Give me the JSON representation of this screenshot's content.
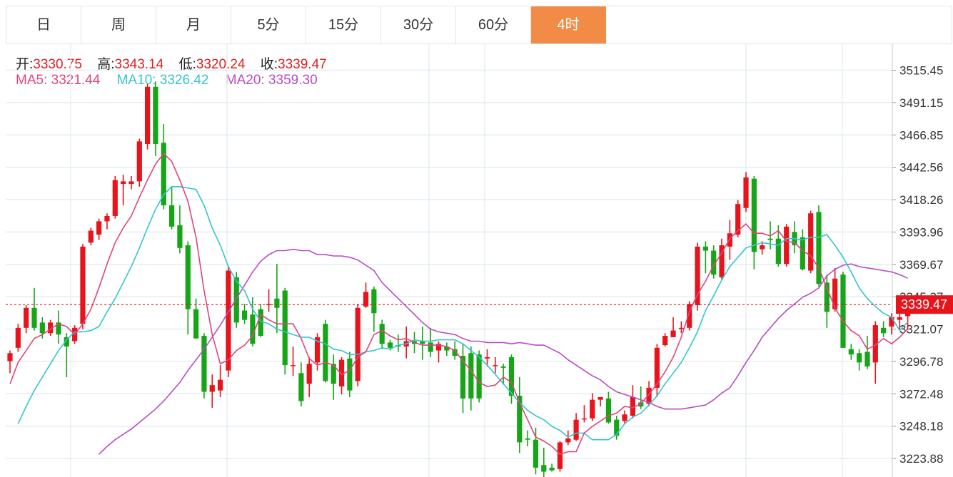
{
  "tabs": [
    {
      "label": "日",
      "active": false
    },
    {
      "label": "周",
      "active": false
    },
    {
      "label": "月",
      "active": false
    },
    {
      "label": "5分",
      "active": false
    },
    {
      "label": "15分",
      "active": false
    },
    {
      "label": "30分",
      "active": false
    },
    {
      "label": "60分",
      "active": false
    },
    {
      "label": "4时",
      "active": true
    }
  ],
  "ohlc": {
    "open_label": "开:",
    "open": "3330.75",
    "high_label": "高:",
    "high": "3343.14",
    "low_label": "低:",
    "low": "3320.24",
    "close_label": "收:",
    "close": "3339.47"
  },
  "ma": {
    "ma5_label": "MA5:",
    "ma5": "3321.44",
    "ma10_label": "MA10:",
    "ma10": "3326.42",
    "ma20_label": "MA20:",
    "ma20": "3359.30"
  },
  "colors": {
    "up": "#e8141c",
    "down": "#16a516",
    "ma5": "#e0457b",
    "ma10": "#33c5d0",
    "ma20": "#b84cc4",
    "accent": "#f28b45",
    "price_line": "#e8141c"
  },
  "chart_data": {
    "type": "candlestick",
    "y_ticks": [
      "3515.45",
      "3491.15",
      "3466.85",
      "3442.56",
      "3418.26",
      "3393.96",
      "3369.67",
      "3345.37",
      "3321.07",
      "3296.78",
      "3272.48",
      "3248.18",
      "3223.88"
    ],
    "ylim": [
      3210,
      3535
    ],
    "current_price": "3339.47",
    "grid": true,
    "candles": [
      [
        3297,
        3303,
        3288,
        3305
      ],
      [
        3307,
        3322,
        3304,
        3325
      ],
      [
        3322,
        3337,
        3318,
        3339
      ],
      [
        3337,
        3322,
        3320,
        3352
      ],
      [
        3326,
        3318,
        3314,
        3330
      ],
      [
        3318,
        3326,
        3316,
        3328
      ],
      [
        3326,
        3317,
        3310,
        3335
      ],
      [
        3315,
        3308,
        3285,
        3318
      ],
      [
        3312,
        3322,
        3310,
        3324
      ],
      [
        3325,
        3383,
        3321,
        3385
      ],
      [
        3386,
        3395,
        3384,
        3397
      ],
      [
        3392,
        3402,
        3388,
        3404
      ],
      [
        3402,
        3406,
        3396,
        3408
      ],
      [
        3406,
        3433,
        3404,
        3436
      ],
      [
        3430,
        3432,
        3414,
        3437
      ],
      [
        3430,
        3432,
        3426,
        3436
      ],
      [
        3432,
        3462,
        3428,
        3464
      ],
      [
        3460,
        3503,
        3456,
        3505
      ],
      [
        3503,
        3460,
        3451,
        3507
      ],
      [
        3461,
        3414,
        3411,
        3475
      ],
      [
        3414,
        3398,
        3396,
        3428
      ],
      [
        3399,
        3382,
        3378,
        3414
      ],
      [
        3384,
        3336,
        3317,
        3387
      ],
      [
        3336,
        3314,
        3316,
        3344
      ],
      [
        3316,
        3274,
        3269,
        3318
      ],
      [
        3274,
        3279,
        3262,
        3287
      ],
      [
        3275,
        3283,
        3270,
        3294
      ],
      [
        3290,
        3365,
        3285,
        3368
      ],
      [
        3360,
        3326,
        3322,
        3364
      ],
      [
        3335,
        3328,
        3325,
        3340
      ],
      [
        3332,
        3310,
        3308,
        3345
      ],
      [
        3336,
        3316,
        3315,
        3340
      ],
      [
        3340,
        3340,
        3334,
        3351
      ],
      [
        3344,
        3337,
        3318,
        3370
      ],
      [
        3350,
        3294,
        3287,
        3352
      ],
      [
        3294,
        3294,
        3286,
        3308
      ],
      [
        3288,
        3267,
        3263,
        3296
      ],
      [
        3280,
        3295,
        3270,
        3300
      ],
      [
        3296,
        3315,
        3290,
        3318
      ],
      [
        3325,
        3282,
        3281,
        3328
      ],
      [
        3295,
        3280,
        3268,
        3302
      ],
      [
        3278,
        3298,
        3272,
        3300
      ],
      [
        3299,
        3275,
        3270,
        3304
      ],
      [
        3282,
        3337,
        3278,
        3340
      ],
      [
        3338,
        3349,
        3337,
        3356
      ],
      [
        3351,
        3333,
        3319,
        3353
      ],
      [
        3325,
        3310,
        3306,
        3328
      ],
      [
        3311,
        3307,
        3305,
        3313
      ],
      [
        3309,
        3308,
        3304,
        3317
      ],
      [
        3308,
        3312,
        3299,
        3323
      ],
      [
        3312,
        3310,
        3303,
        3319
      ],
      [
        3312,
        3310,
        3298,
        3323
      ],
      [
        3311,
        3304,
        3300,
        3322
      ],
      [
        3305,
        3310,
        3296,
        3312
      ],
      [
        3308,
        3305,
        3301,
        3311
      ],
      [
        3306,
        3301,
        3298,
        3312
      ],
      [
        3301,
        3269,
        3258,
        3310
      ],
      [
        3303,
        3269,
        3260,
        3308
      ],
      [
        3302,
        3269,
        3266,
        3305
      ],
      [
        3299,
        3300,
        3293,
        3306
      ],
      [
        3294,
        3294,
        3288,
        3300
      ],
      [
        3293,
        3292,
        3280,
        3295
      ],
      [
        3300,
        3271,
        3265,
        3302
      ],
      [
        3271,
        3236,
        3228,
        3285
      ],
      [
        3239,
        3238,
        3233,
        3245
      ],
      [
        3238,
        3217,
        3212,
        3247
      ],
      [
        3219,
        3214,
        3207,
        3232
      ],
      [
        3217,
        3215,
        3214,
        3220
      ],
      [
        3216,
        3236,
        3214,
        3237
      ],
      [
        3236,
        3239,
        3234,
        3245
      ],
      [
        3238,
        3253,
        3237,
        3258
      ],
      [
        3254,
        3254,
        3251,
        3264
      ],
      [
        3254,
        3268,
        3252,
        3273
      ],
      [
        3268,
        3270,
        3263,
        3270
      ],
      [
        3269,
        3251,
        3250,
        3274
      ],
      [
        3253,
        3241,
        3238,
        3256
      ],
      [
        3252,
        3257,
        3250,
        3260
      ],
      [
        3256,
        3270,
        3254,
        3279
      ],
      [
        3266,
        3263,
        3261,
        3278
      ],
      [
        3265,
        3277,
        3263,
        3282
      ],
      [
        3277,
        3307,
        3270,
        3310
      ],
      [
        3309,
        3316,
        3308,
        3318
      ],
      [
        3315,
        3320,
        3315,
        3330
      ],
      [
        3322,
        3322,
        3318,
        3327
      ],
      [
        3322,
        3340,
        3320,
        3342
      ],
      [
        3339,
        3383,
        3335,
        3386
      ],
      [
        3383,
        3380,
        3363,
        3387
      ],
      [
        3380,
        3362,
        3359,
        3384
      ],
      [
        3360,
        3384,
        3358,
        3389
      ],
      [
        3383,
        3393,
        3373,
        3403
      ],
      [
        3392,
        3415,
        3390,
        3418
      ],
      [
        3412,
        3435,
        3409,
        3439
      ],
      [
        3434,
        3379,
        3366,
        3436
      ],
      [
        3381,
        3384,
        3377,
        3387
      ],
      [
        3389,
        3388,
        3381,
        3402
      ],
      [
        3389,
        3370,
        3368,
        3399
      ],
      [
        3370,
        3398,
        3368,
        3400
      ],
      [
        3394,
        3384,
        3378,
        3402
      ],
      [
        3390,
        3366,
        3365,
        3396
      ],
      [
        3365,
        3408,
        3363,
        3410
      ],
      [
        3409,
        3355,
        3353,
        3414
      ],
      [
        3356,
        3334,
        3322,
        3362
      ],
      [
        3336,
        3359,
        3334,
        3367
      ],
      [
        3362,
        3307,
        3307,
        3364
      ],
      [
        3306,
        3302,
        3298,
        3310
      ],
      [
        3303,
        3296,
        3290,
        3306
      ],
      [
        3304,
        3293,
        3291,
        3316
      ],
      [
        3296,
        3324,
        3280,
        3327
      ],
      [
        3322,
        3318,
        3315,
        3327
      ],
      [
        3323,
        3330,
        3317,
        3333
      ],
      [
        3328,
        3330,
        3320,
        3336
      ],
      [
        3330.75,
        3339.47,
        3320.24,
        3343.14
      ]
    ],
    "ma5": [
      3280,
      3296,
      3305,
      3314,
      3317,
      3321,
      3325,
      3323,
      3317,
      3325,
      3336,
      3352,
      3370,
      3386,
      3397,
      3406,
      3420,
      3433,
      3445,
      3453,
      3447,
      3433,
      3417,
      3390,
      3350,
      3317,
      3295,
      3298,
      3305,
      3309,
      3316,
      3332,
      3328,
      3325,
      3325,
      3325,
      3314,
      3299,
      3294,
      3296,
      3294,
      3287,
      3290,
      3300,
      3304,
      3317,
      3320,
      3316,
      3313,
      3314,
      3311,
      3309,
      3309,
      3309,
      3308,
      3305,
      3297,
      3290,
      3281,
      3278,
      3279,
      3285,
      3281,
      3266,
      3253,
      3240,
      3237,
      3233,
      3227,
      3229,
      3229,
      3243,
      3248,
      3252,
      3256,
      3258,
      3263,
      3262,
      3265,
      3272,
      3280,
      3289,
      3300,
      3315,
      3334,
      3347,
      3357,
      3369,
      3378,
      3389,
      3395,
      3400,
      3393,
      3393,
      3391,
      3395,
      3387,
      3386,
      3380,
      3376,
      3367,
      3352,
      3337,
      3327,
      3320,
      3316,
      3306,
      3309,
      3314,
      3310,
      3315,
      3321.44
    ],
    "ma10": [
      3250,
      3263,
      3275,
      3285,
      3295,
      3305,
      3313,
      3319,
      3319,
      3320,
      3323,
      3334,
      3344,
      3356,
      3368,
      3382,
      3397,
      3411,
      3422,
      3428,
      3428,
      3427,
      3426,
      3414,
      3397,
      3384,
      3368,
      3357,
      3350,
      3336,
      3327,
      3325,
      3321,
      3319,
      3317,
      3315,
      3315,
      3312,
      3310,
      3306,
      3305,
      3302,
      3302,
      3304,
      3305,
      3307,
      3306,
      3309,
      3310,
      3313,
      3312,
      3312,
      3313,
      3313,
      3313,
      3310,
      3305,
      3300,
      3294,
      3287,
      3280,
      3273,
      3266,
      3260,
      3256,
      3253,
      3248,
      3245,
      3240,
      3243,
      3243,
      3238,
      3238,
      3238,
      3242,
      3250,
      3255,
      3258,
      3264,
      3271,
      3280,
      3288,
      3296,
      3307,
      3319,
      3335,
      3346,
      3358,
      3368,
      3375,
      3382,
      3384,
      3386,
      3385,
      3384,
      3389,
      3389,
      3388,
      3390,
      3390,
      3392,
      3384,
      3375,
      3364,
      3352,
      3344,
      3338,
      3333,
      3330,
      3320,
      3326.42
    ],
    "ma20": [
      3227,
      3233,
      3238,
      3242,
      3246,
      3251,
      3256,
      3261,
      3267,
      3274,
      3281,
      3290,
      3298,
      3306,
      3315,
      3324,
      3334,
      3344,
      3354,
      3364,
      3372,
      3377,
      3380,
      3380,
      3381,
      3380,
      3380,
      3377,
      3377,
      3376,
      3376,
      3375,
      3373,
      3369,
      3365,
      3356,
      3350,
      3344,
      3338,
      3332,
      3326,
      3321,
      3319,
      3318,
      3317,
      3314,
      3312,
      3312,
      3311,
      3311,
      3311,
      3310,
      3311,
      3310,
      3309,
      3309,
      3306,
      3303,
      3298,
      3294,
      3290,
      3286,
      3283,
      3278,
      3274,
      3272,
      3270,
      3268,
      3266,
      3263,
      3261,
      3261,
      3261,
      3262,
      3263,
      3264,
      3268,
      3273,
      3277,
      3286,
      3296,
      3305,
      3315,
      3322,
      3329,
      3335,
      3340,
      3345,
      3348,
      3352,
      3361,
      3366,
      3369,
      3370,
      3368,
      3367,
      3366,
      3365,
      3364,
      3362,
      3359.3
    ]
  }
}
